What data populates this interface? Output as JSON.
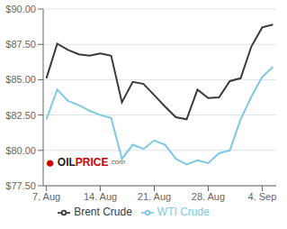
{
  "chart_data": {
    "type": "line",
    "x": [
      0,
      1,
      2,
      3,
      4,
      5,
      6,
      7,
      8,
      9,
      10,
      11,
      12,
      13,
      14,
      15,
      16,
      17,
      18,
      19,
      20,
      21
    ],
    "series": [
      {
        "name": "WTI Crude",
        "color": "#7ec8e3",
        "values": [
          82.2,
          84.3,
          83.5,
          83.2,
          82.8,
          82.5,
          82.3,
          79.4,
          80.4,
          80.1,
          80.7,
          80.4,
          79.4,
          79.0,
          79.3,
          79.1,
          79.8,
          80.0,
          82.2,
          83.8,
          85.2,
          85.9
        ]
      },
      {
        "name": "Brent Crude",
        "color": "#3a3a3a",
        "values": [
          85.1,
          87.55,
          87.1,
          86.8,
          86.7,
          86.85,
          86.7,
          83.4,
          84.85,
          84.7,
          83.9,
          83.1,
          82.35,
          82.2,
          84.3,
          83.7,
          83.75,
          84.9,
          85.1,
          87.35,
          88.7,
          88.9
        ]
      }
    ],
    "xlim": [
      -0.3,
      21.3
    ],
    "xticks": [
      {
        "value": 0,
        "label": "7. Aug"
      },
      {
        "value": 5,
        "label": "14. Aug"
      },
      {
        "value": 10,
        "label": "21. Aug"
      },
      {
        "value": 15,
        "label": "28. Aug"
      },
      {
        "value": 20,
        "label": "4. Sep"
      }
    ],
    "ylim": [
      77.5,
      90.0
    ],
    "yticks": [
      {
        "value": 77.5,
        "label": "$77.50"
      },
      {
        "value": 80.0,
        "label": "$80.00"
      },
      {
        "value": 82.5,
        "label": "$82.50"
      },
      {
        "value": 85.0,
        "label": "$85.00"
      },
      {
        "value": 87.5,
        "label": "$87.50"
      },
      {
        "value": 90.0,
        "label": "$90.00"
      }
    ],
    "grid": true,
    "legend": "bottom",
    "annotations": [
      {
        "text": "●",
        "color": "#cc0000"
      },
      {
        "text": "OIL",
        "color": "#222222"
      },
      {
        "text": "PRICE",
        "color": "#cc0000"
      },
      {
        "text": ".com",
        "color": "#555555"
      }
    ]
  }
}
